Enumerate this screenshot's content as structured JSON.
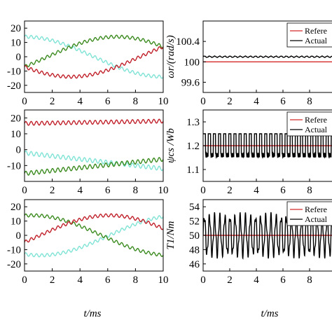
{
  "chart_data": [
    {
      "id": "current-1",
      "type": "line",
      "xlim": [
        0,
        10
      ],
      "ylim": [
        -25,
        25
      ],
      "xticks": [
        0,
        2,
        4,
        6,
        8,
        10
      ],
      "yticks": [
        -20,
        -10,
        0,
        10,
        20
      ],
      "xlabel": "",
      "ylabel": "",
      "series": [
        {
          "color": "#7fe3d5",
          "fn": "sin",
          "amp": 14,
          "period": 20,
          "phase": 90,
          "offset": 0,
          "ripple": 1.1,
          "rfreq": 2.6
        },
        {
          "color": "#3a8a1e",
          "fn": "sin",
          "amp": 14,
          "period": 20,
          "phase": -30,
          "offset": 0,
          "ripple": 1.1,
          "rfreq": 2.6
        },
        {
          "color": "#c0202a",
          "fn": "sin",
          "amp": 14,
          "period": 20,
          "phase": 210,
          "offset": 0,
          "ripple": 1.1,
          "rfreq": 2.6
        }
      ]
    },
    {
      "id": "current-2",
      "type": "line",
      "xlim": [
        0,
        10
      ],
      "ylim": [
        -20,
        25
      ],
      "xticks": [
        0,
        2,
        4,
        6,
        8,
        10
      ],
      "yticks": [
        -10,
        0,
        10,
        20
      ],
      "xlabel": "",
      "ylabel": "",
      "series": [
        {
          "color": "#c0202a",
          "fn": "lin",
          "start": 16.5,
          "end": 18,
          "ripple": 1.2,
          "rfreq": 2.6
        },
        {
          "color": "#7fe3d5",
          "fn": "lin",
          "start": -2,
          "end": -12,
          "ripple": 1.3,
          "rfreq": 2.6
        },
        {
          "color": "#3a8a1e",
          "fn": "lin",
          "start": -15,
          "end": -6,
          "ripple": 1.3,
          "rfreq": 2.6
        }
      ]
    },
    {
      "id": "current-3",
      "type": "line",
      "xlim": [
        0,
        10
      ],
      "ylim": [
        -25,
        25
      ],
      "xticks": [
        0,
        2,
        4,
        6,
        8,
        10
      ],
      "yticks": [
        -20,
        -10,
        0,
        10,
        20
      ],
      "xlabel": "t/ms",
      "ylabel": "",
      "series": [
        {
          "color": "#7fe3d5",
          "fn": "sin",
          "amp": 14,
          "period": 20,
          "phase": 250,
          "offset": 0,
          "ripple": 1.1,
          "rfreq": 2.6
        },
        {
          "color": "#3a8a1e",
          "fn": "sin",
          "amp": 14,
          "period": 20,
          "phase": 80,
          "offset": 0,
          "ripple": 1.1,
          "rfreq": 2.6
        },
        {
          "color": "#c0202a",
          "fn": "sin",
          "amp": 14,
          "period": 20,
          "phase": -20,
          "offset": 0,
          "ripple": 1.1,
          "rfreq": 2.6
        }
      ]
    },
    {
      "id": "speed",
      "type": "line",
      "xlim": [
        0,
        10
      ],
      "ylim": [
        99.4,
        100.8
      ],
      "xticks": [
        0,
        2,
        4,
        6,
        8
      ],
      "yticks": [
        99.6,
        100,
        100.4
      ],
      "ytick_labels": [
        "99.6",
        "100",
        "100.4"
      ],
      "xlabel": "",
      "ylabel": "ωr/(rad/s)",
      "legend": [
        "Refere",
        "Actual"
      ],
      "legend_position": "top-right",
      "series": [
        {
          "name": "Refere",
          "color": "#d42a2a",
          "fn": "const",
          "value": 100
        },
        {
          "name": "Actual",
          "color": "#000000",
          "fn": "osc",
          "value": 100.1,
          "amp": 0.012,
          "rfreq": 2.6
        }
      ]
    },
    {
      "id": "flux",
      "type": "line",
      "xlim": [
        0,
        10
      ],
      "ylim": [
        1.05,
        1.35
      ],
      "xticks": [
        0,
        2,
        4,
        6,
        8
      ],
      "yticks": [
        1.1,
        1.2,
        1.3
      ],
      "ytick_labels": [
        "1.1",
        "1.2",
        "1.3"
      ],
      "xlabel": "",
      "ylabel": "ψcs /Wb",
      "legend": [
        "Refere",
        "Actual"
      ],
      "legend_position": "top-right",
      "series": [
        {
          "name": "Refere",
          "color": "#d42a2a",
          "fn": "const",
          "value": 1.2
        },
        {
          "name": "Actual",
          "color": "#000000",
          "fn": "square",
          "lo": 1.16,
          "hi": 1.25,
          "rfreq": 2.6
        }
      ]
    },
    {
      "id": "torque",
      "type": "line",
      "xlim": [
        0,
        10
      ],
      "ylim": [
        45,
        55
      ],
      "xticks": [
        0,
        2,
        4,
        6,
        8
      ],
      "yticks": [
        46,
        48,
        50,
        52,
        54
      ],
      "ytick_labels": [
        "46",
        "48",
        "50",
        "52",
        "54"
      ],
      "xlabel": "t/ms",
      "ylabel": "T1/Nm",
      "legend": [
        "Refere",
        "Actual"
      ],
      "legend_position": "top-right",
      "series": [
        {
          "name": "Refere",
          "color": "#d42a2a",
          "fn": "const",
          "value": 50
        },
        {
          "name": "Actual",
          "color": "#000000",
          "fn": "osc",
          "value": 50,
          "amp": 2.6,
          "rfreq": 2.6
        }
      ]
    }
  ]
}
